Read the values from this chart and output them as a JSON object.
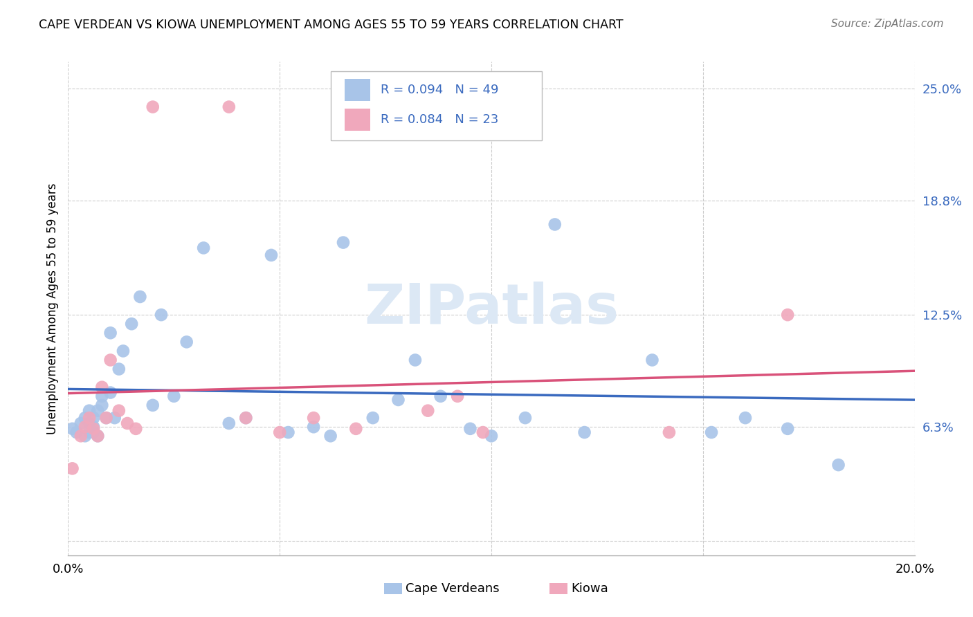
{
  "title": "CAPE VERDEAN VS KIOWA UNEMPLOYMENT AMONG AGES 55 TO 59 YEARS CORRELATION CHART",
  "source": "Source: ZipAtlas.com",
  "ylabel": "Unemployment Among Ages 55 to 59 years",
  "xlim": [
    0.0,
    0.2
  ],
  "ylim": [
    -0.008,
    0.265
  ],
  "yticks": [
    0.0,
    0.063,
    0.125,
    0.188,
    0.25
  ],
  "ytick_labels": [
    "",
    "6.3%",
    "12.5%",
    "18.8%",
    "25.0%"
  ],
  "xticks": [
    0.0,
    0.05,
    0.1,
    0.15,
    0.2
  ],
  "xtick_labels": [
    "0.0%",
    "",
    "",
    "",
    "20.0%"
  ],
  "blue_color": "#a8c4e8",
  "pink_color": "#f0a8bc",
  "line_blue": "#3a6abf",
  "line_pink": "#d9527a",
  "blue_x": [
    0.001,
    0.002,
    0.003,
    0.004,
    0.004,
    0.005,
    0.005,
    0.005,
    0.006,
    0.006,
    0.006,
    0.007,
    0.007,
    0.008,
    0.008,
    0.009,
    0.01,
    0.01,
    0.011,
    0.012,
    0.013,
    0.015,
    0.017,
    0.02,
    0.022,
    0.025,
    0.028,
    0.032,
    0.038,
    0.042,
    0.048,
    0.052,
    0.058,
    0.062,
    0.065,
    0.072,
    0.078,
    0.082,
    0.088,
    0.095,
    0.1,
    0.108,
    0.115,
    0.122,
    0.138,
    0.152,
    0.16,
    0.17,
    0.182
  ],
  "blue_y": [
    0.062,
    0.06,
    0.065,
    0.058,
    0.068,
    0.06,
    0.065,
    0.072,
    0.06,
    0.063,
    0.068,
    0.072,
    0.058,
    0.075,
    0.08,
    0.068,
    0.115,
    0.082,
    0.068,
    0.095,
    0.105,
    0.12,
    0.135,
    0.075,
    0.125,
    0.08,
    0.11,
    0.162,
    0.065,
    0.068,
    0.158,
    0.06,
    0.063,
    0.058,
    0.165,
    0.068,
    0.078,
    0.1,
    0.08,
    0.062,
    0.058,
    0.068,
    0.175,
    0.06,
    0.1,
    0.06,
    0.068,
    0.062,
    0.042
  ],
  "pink_x": [
    0.001,
    0.003,
    0.004,
    0.005,
    0.006,
    0.007,
    0.008,
    0.009,
    0.01,
    0.012,
    0.014,
    0.016,
    0.02,
    0.038,
    0.042,
    0.05,
    0.058,
    0.068,
    0.085,
    0.092,
    0.098,
    0.142,
    0.17
  ],
  "pink_y": [
    0.04,
    0.058,
    0.063,
    0.068,
    0.062,
    0.058,
    0.085,
    0.068,
    0.1,
    0.072,
    0.065,
    0.062,
    0.24,
    0.24,
    0.068,
    0.06,
    0.068,
    0.062,
    0.072,
    0.08,
    0.06,
    0.06,
    0.125
  ],
  "watermark_text": "ZIPatlas",
  "watermark_color": "#dce8f5",
  "background_color": "#ffffff",
  "grid_color": "#cccccc"
}
